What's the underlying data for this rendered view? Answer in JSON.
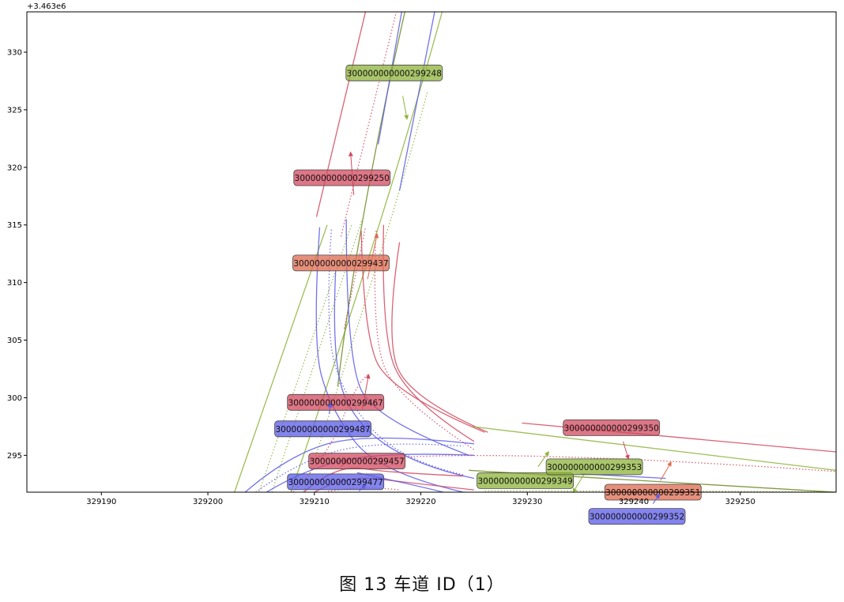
{
  "figure_caption": "图 13   车道 ID（1）",
  "chart_data": {
    "type": "line",
    "y_offset_label": "+3.463e6",
    "x_ticks": [
      "329190",
      "329200",
      "329210",
      "329220",
      "329230",
      "329240",
      "329250"
    ],
    "y_ticks": [
      "295",
      "300",
      "305",
      "310",
      "315",
      "320",
      "325",
      "330"
    ],
    "xlim": [
      329183,
      329259
    ],
    "ylim": [
      3463291.8,
      3463333.5
    ],
    "grid": false,
    "colors": {
      "green": "#8db33a",
      "red": "#d2485e",
      "blue": "#5b5be8",
      "salmon": "#de6a4f",
      "olive": "#6d8a1e"
    },
    "lanes": [
      {
        "id": "300000000000299248",
        "color": "green",
        "label_x": 329217.5,
        "label_y": 3463328.2,
        "arrow": [
          [
            329218.3,
            3463326.2
          ],
          [
            329218.7,
            3463324.2
          ]
        ]
      },
      {
        "id": "300000000000299250",
        "color": "red",
        "label_x": 329212.6,
        "label_y": 3463319.1,
        "arrow": [
          [
            329213.7,
            3463317.6
          ],
          [
            329213.4,
            3463321.3
          ]
        ]
      },
      {
        "id": "300000000000299437",
        "color": "salmon",
        "label_x": 329212.5,
        "label_y": 3463311.7,
        "arrow": [
          [
            329215.0,
            3463310.3
          ],
          [
            329215.9,
            3463314.2
          ]
        ]
      },
      {
        "id": "300000000000299467",
        "color": "red",
        "label_x": 329212.0,
        "label_y": 3463299.6,
        "arrow": [
          [
            329214.5,
            3463299.0
          ],
          [
            329215.1,
            3463302.0
          ]
        ]
      },
      {
        "id": "300000000000299487",
        "color": "blue",
        "label_x": 329210.8,
        "label_y": 3463297.3,
        "arrow": [
          [
            329211.4,
            3463298.6
          ],
          [
            329211.5,
            3463299.5
          ]
        ]
      },
      {
        "id": "300000000000299457",
        "color": "red",
        "label_x": 329214.0,
        "label_y": 3463294.5,
        "arrow": [
          [
            329212.5,
            3463294.0
          ],
          [
            329213.1,
            3463294.6
          ]
        ]
      },
      {
        "id": "300000000000299477",
        "color": "blue",
        "label_x": 329212.0,
        "label_y": 3463292.7,
        "arrow": [
          [
            329214.2,
            3463291.9
          ],
          [
            329214.8,
            3463292.4
          ]
        ]
      },
      {
        "id": "300000000000299349",
        "color": "green",
        "label_x": 329229.8,
        "label_y": 3463292.8,
        "arrow": [
          [
            329231.0,
            3463294.0
          ],
          [
            329232.0,
            3463295.3
          ]
        ]
      },
      {
        "id": "300000000000299353",
        "color": "green",
        "label_x": 329236.3,
        "label_y": 3463294.0,
        "arrow": [
          [
            329235.3,
            3463293.3
          ],
          [
            329234.3,
            3463291.8
          ]
        ]
      },
      {
        "id": "300000000000299350",
        "color": "red",
        "label_x": 329237.9,
        "label_y": 3463297.4,
        "arrow": [
          [
            329239.0,
            3463296.2
          ],
          [
            329239.5,
            3463294.7
          ]
        ]
      },
      {
        "id": "300000000000299351",
        "color": "salmon",
        "label_x": 329241.8,
        "label_y": 3463291.8,
        "arrow": [
          [
            329242.5,
            3463292.8
          ],
          [
            329243.5,
            3463294.4
          ]
        ]
      },
      {
        "id": "300000000000299352",
        "color": "blue",
        "label_x": 329240.3,
        "label_y": 3463289.7,
        "arrow": [
          [
            329241.8,
            3463290.8
          ],
          [
            329242.4,
            3463291.6
          ]
        ]
      }
    ],
    "paths": [
      {
        "color": "green",
        "style": "solid",
        "points": [
          [
            329202.5,
            3463291.8
          ],
          [
            329211.2,
            3463315.0
          ]
        ]
      },
      {
        "color": "green",
        "style": "dotted",
        "points": [
          [
            329204.8,
            3463291.8
          ],
          [
            329213.5,
            3463315.0
          ]
        ]
      },
      {
        "color": "green",
        "style": "dotted",
        "points": [
          [
            329206.0,
            3463291.8
          ],
          [
            329214.5,
            3463315.5
          ]
        ]
      },
      {
        "color": "green",
        "style": "solid",
        "points": [
          [
            329207.8,
            3463291.8
          ],
          [
            329216.8,
            3463316.0
          ],
          [
            329222.0,
            3463333.5
          ]
        ]
      },
      {
        "color": "green",
        "style": "dotted",
        "points": [
          [
            329209.0,
            3463291.8
          ],
          [
            329217.3,
            3463315.0
          ],
          [
            329220.6,
            3463326.5
          ]
        ]
      },
      {
        "color": "red",
        "style": "solid",
        "points": [
          [
            329210.2,
            3463315.7
          ],
          [
            329214.8,
            3463333.5
          ]
        ]
      },
      {
        "color": "red",
        "style": "dotted",
        "points": [
          [
            329212.5,
            3463314.0
          ],
          [
            329217.7,
            3463333.5
          ]
        ]
      },
      {
        "color": "olive",
        "style": "solid",
        "points": [
          [
            329212.2,
            3463301.0
          ],
          [
            329214.0,
            3463315.0
          ],
          [
            329218.5,
            3463333.5
          ]
        ]
      },
      {
        "color": "red",
        "style": "dotted",
        "points": [
          [
            329212.8,
            3463306.0
          ],
          [
            329214.8,
            3463314.8
          ]
        ]
      },
      {
        "color": "blue",
        "style": "solid",
        "points": [
          [
            329218.2,
            3463333.5
          ],
          [
            329216.0,
            3463322.0
          ]
        ]
      },
      {
        "color": "blue",
        "style": "solid",
        "points": [
          [
            329221.3,
            3463333.5
          ],
          [
            329218.0,
            3463318.0
          ]
        ]
      },
      {
        "color": "blue",
        "style": "solid",
        "points": [
          [
            329210.5,
            3463314.8
          ],
          [
            329209.8,
            3463305.0
          ],
          [
            329211.5,
            3463299.0
          ],
          [
            329216.0,
            3463293.5
          ],
          [
            329224.0,
            3463291.8
          ]
        ]
      },
      {
        "color": "blue",
        "style": "solid",
        "points": [
          [
            329212.0,
            3463311.0
          ],
          [
            329211.6,
            3463303.0
          ],
          [
            329214.0,
            3463297.5
          ],
          [
            329220.0,
            3463294.0
          ],
          [
            329225.0,
            3463293.0
          ]
        ]
      },
      {
        "color": "blue",
        "style": "solid",
        "points": [
          [
            329213.0,
            3463315.5
          ],
          [
            329213.0,
            3463303.0
          ],
          [
            329216.0,
            3463298.0
          ],
          [
            329224.5,
            3463295.0
          ]
        ]
      },
      {
        "color": "blue",
        "style": "dotted",
        "points": [
          [
            329211.6,
            3463314.6
          ],
          [
            329211.0,
            3463306.0
          ],
          [
            329212.8,
            3463300.0
          ],
          [
            329218.0,
            3463294.6
          ],
          [
            329224.0,
            3463293.3
          ]
        ]
      },
      {
        "color": "red",
        "style": "solid",
        "points": [
          [
            329214.4,
            3463314.5
          ],
          [
            329214.6,
            3463306.0
          ],
          [
            329217.0,
            3463300.5
          ],
          [
            329226.0,
            3463297.0
          ]
        ]
      },
      {
        "color": "red",
        "style": "solid",
        "points": [
          [
            329216.5,
            3463315.0
          ],
          [
            329216.3,
            3463306.0
          ],
          [
            329218.5,
            3463300.0
          ],
          [
            329225.0,
            3463296.2
          ]
        ]
      },
      {
        "color": "red",
        "style": "dotted",
        "points": [
          [
            329215.8,
            3463314.5
          ],
          [
            329215.4,
            3463306.0
          ],
          [
            329217.5,
            3463300.0
          ],
          [
            329225.0,
            3463295.5
          ]
        ]
      },
      {
        "color": "red",
        "style": "solid",
        "points": [
          [
            329218.0,
            3463313.5
          ],
          [
            329216.7,
            3463305.5
          ],
          [
            329218.8,
            3463300.0
          ],
          [
            329226.3,
            3463297.0
          ]
        ]
      },
      {
        "color": "blue",
        "style": "solid",
        "points": [
          [
            329203.5,
            3463291.8
          ],
          [
            329207.5,
            3463295.0
          ],
          [
            329215.0,
            3463297.0
          ],
          [
            329225.0,
            3463296.0
          ]
        ]
      },
      {
        "color": "blue",
        "style": "solid",
        "points": [
          [
            329205.5,
            3463291.8
          ],
          [
            329209.5,
            3463294.0
          ],
          [
            329217.0,
            3463295.3
          ],
          [
            329225.0,
            3463295.0
          ]
        ]
      },
      {
        "color": "blue",
        "style": "dotted",
        "points": [
          [
            329204.5,
            3463291.8
          ],
          [
            329208.5,
            3463294.5
          ],
          [
            329216.0,
            3463296.3
          ],
          [
            329224.0,
            3463295.8
          ]
        ]
      },
      {
        "color": "red",
        "style": "dotted",
        "points": [
          [
            329208.0,
            3463291.8
          ],
          [
            329211.5,
            3463295.3
          ],
          [
            329213.8,
            3463301.0
          ],
          [
            329215.0,
            3463302.0
          ]
        ]
      },
      {
        "color": "red",
        "style": "solid",
        "points": [
          [
            329209.0,
            3463291.8
          ],
          [
            329212.0,
            3463294.2
          ],
          [
            329217.0,
            3463293.5
          ],
          [
            329224.0,
            3463293.2
          ]
        ]
      },
      {
        "color": "red",
        "style": "solid",
        "points": [
          [
            329210.0,
            3463291.8
          ],
          [
            329213.0,
            3463293.3
          ],
          [
            329219.0,
            3463292.6
          ],
          [
            329225.0,
            3463292.0
          ]
        ]
      },
      {
        "color": "red",
        "style": "dotted",
        "points": [
          [
            329211.0,
            3463291.8
          ],
          [
            329214.0,
            3463292.4
          ],
          [
            329218.0,
            3463292.0
          ]
        ]
      },
      {
        "color": "red",
        "style": "dotted",
        "points": [
          [
            329214.0,
            3463294.5
          ],
          [
            329225.0,
            3463295.8
          ],
          [
            329259,
            3463293.6
          ]
        ]
      },
      {
        "color": "blue",
        "style": "solid",
        "points": [
          [
            329214.0,
            3463293.5
          ],
          [
            329220.0,
            3463292.3
          ],
          [
            329223.0,
            3463291.6
          ]
        ]
      },
      {
        "color": "green",
        "style": "solid",
        "points": [
          [
            329224.8,
            3463297.5
          ],
          [
            329259,
            3463293.7
          ]
        ]
      },
      {
        "color": "red",
        "style": "solid",
        "points": [
          [
            329229.5,
            3463297.8
          ],
          [
            329259,
            3463295.3
          ]
        ]
      },
      {
        "color": "olive",
        "style": "solid",
        "points": [
          [
            329224.5,
            3463293.7
          ],
          [
            329259,
            3463291.8
          ]
        ]
      },
      {
        "color": "green",
        "style": "dotted",
        "points": [
          [
            329226.0,
            3463291.9
          ],
          [
            329250.0,
            3463291.9
          ],
          [
            329259,
            3463291.8
          ]
        ]
      },
      {
        "color": "blue",
        "style": "solid",
        "points": [
          [
            329235.0,
            3463293.4
          ],
          [
            329243.0,
            3463293.0
          ]
        ]
      }
    ]
  }
}
